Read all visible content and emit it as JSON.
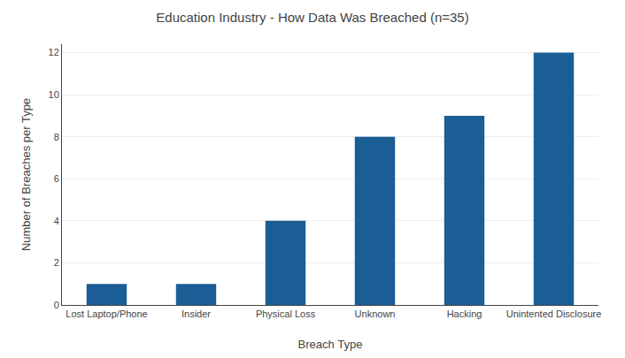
{
  "chart_data": {
    "type": "bar",
    "title": "Education Industry - How Data Was Breached (n=35)",
    "xlabel": "Breach Type",
    "ylabel": "Number of Breaches per Type",
    "categories": [
      "Lost Laptop/Phone",
      "Insider",
      "Physical Loss",
      "Unknown",
      "Hacking",
      "Unintented Disclosure"
    ],
    "values": [
      1,
      1,
      4,
      8,
      9,
      12
    ],
    "color": "#1b5e96",
    "ylim": [
      0,
      12.4
    ],
    "yticks": [
      0,
      2,
      4,
      6,
      8,
      10,
      12
    ],
    "grid": true
  }
}
